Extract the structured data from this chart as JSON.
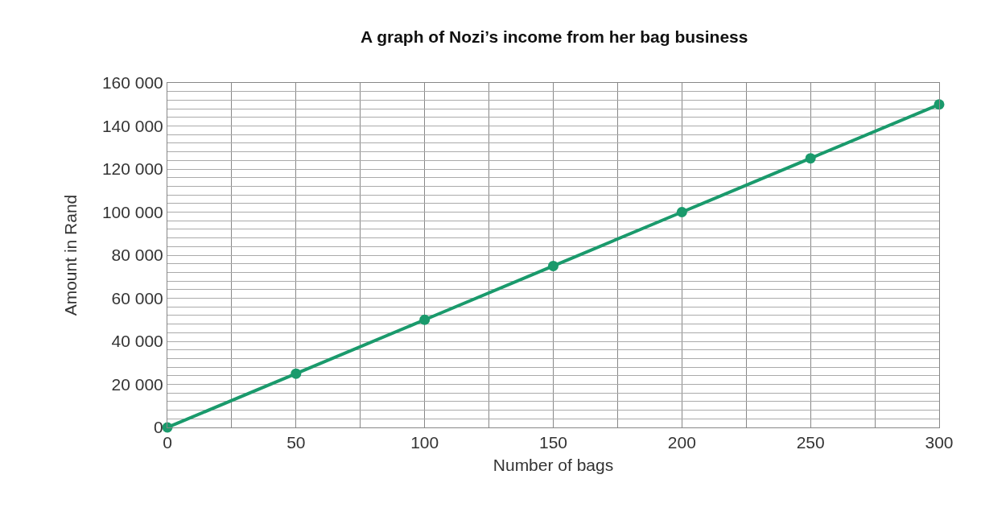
{
  "chart_data": {
    "type": "line",
    "title": "A graph of Nozi’s income from her bag business",
    "xlabel": "Number of bags",
    "ylabel": "Amount in Rand",
    "x": [
      0,
      50,
      100,
      150,
      200,
      250,
      300
    ],
    "series": [
      {
        "color": "#1a9a6c",
        "values": [
          0,
          25000,
          50000,
          75000,
          100000,
          125000,
          150000
        ]
      }
    ],
    "marker": "circle",
    "line_style": "solid",
    "grid": true,
    "xlim": [
      0,
      300
    ],
    "xticks": [
      0,
      {
        "value": 25,
        "label": null
      },
      50,
      {
        "value": 75,
        "label": null
      },
      100,
      {
        "value": 125,
        "label": null
      },
      150,
      {
        "value": 175,
        "label": null
      },
      200,
      {
        "value": 225,
        "label": null
      },
      250,
      {
        "value": 275,
        "label": null
      },
      300
    ],
    "ylim": [
      0,
      160000
    ],
    "yticks": [
      0,
      {
        "value": 4000,
        "label": null
      },
      {
        "value": 8000,
        "label": null
      },
      {
        "value": 12000,
        "label": null
      },
      {
        "value": 16000,
        "label": null
      },
      {
        "value": 20000,
        "label": "20 000"
      },
      {
        "value": 24000,
        "label": null
      },
      {
        "value": 28000,
        "label": null
      },
      {
        "value": 32000,
        "label": null
      },
      {
        "value": 36000,
        "label": null
      },
      {
        "value": 40000,
        "label": "40 000"
      },
      {
        "value": 44000,
        "label": null
      },
      {
        "value": 48000,
        "label": null
      },
      {
        "value": 52000,
        "label": null
      },
      {
        "value": 56000,
        "label": null
      },
      {
        "value": 60000,
        "label": "60 000"
      },
      {
        "value": 64000,
        "label": null
      },
      {
        "value": 68000,
        "label": null
      },
      {
        "value": 72000,
        "label": null
      },
      {
        "value": 76000,
        "label": null
      },
      {
        "value": 80000,
        "label": "80 000"
      },
      {
        "value": 84000,
        "label": null
      },
      {
        "value": 88000,
        "label": null
      },
      {
        "value": 92000,
        "label": null
      },
      {
        "value": 96000,
        "label": null
      },
      {
        "value": 100000,
        "label": "100 000"
      },
      {
        "value": 104000,
        "label": null
      },
      {
        "value": 108000,
        "label": null
      },
      {
        "value": 112000,
        "label": null
      },
      {
        "value": 116000,
        "label": null
      },
      {
        "value": 120000,
        "label": "120 000"
      },
      {
        "value": 124000,
        "label": null
      },
      {
        "value": 128000,
        "label": null
      },
      {
        "value": 132000,
        "label": null
      },
      {
        "value": 136000,
        "label": null
      },
      {
        "value": 140000,
        "label": "140 000"
      },
      {
        "value": 144000,
        "label": null
      },
      {
        "value": 148000,
        "label": null
      },
      {
        "value": 152000,
        "label": null
      },
      {
        "value": 156000,
        "label": null
      },
      {
        "value": 160000,
        "label": "160 000"
      }
    ]
  }
}
